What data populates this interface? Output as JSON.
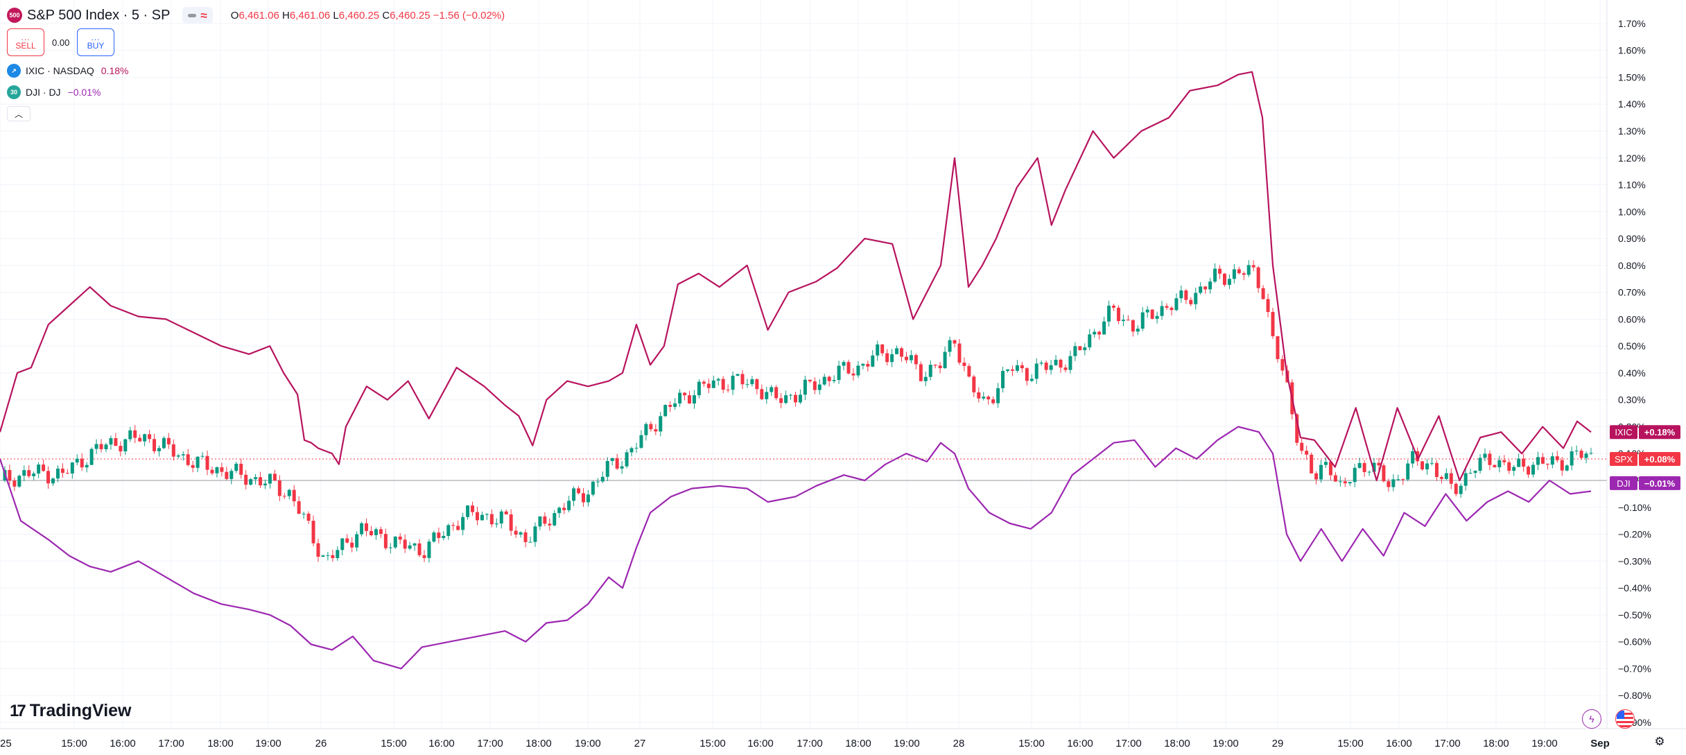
{
  "header": {
    "symbol_logo": "500",
    "title": "S&P 500 Index · 5 · SP",
    "ohlc": {
      "o_label": "O",
      "o": "6,461.06",
      "h_label": "H",
      "h": "6,461.06",
      "l_label": "L",
      "l": "6,460.25",
      "c_label": "C",
      "c": "6,460.25",
      "change": "−1.56 (−0.02%)"
    }
  },
  "trade": {
    "sell_dots": "...",
    "sell_label": "SELL",
    "spread": "0.00",
    "buy_dots": "...",
    "buy_label": "BUY"
  },
  "legend": [
    {
      "symbol": "IXIC · NASDAQ",
      "value": "0.18%",
      "color": "#b7135e",
      "icon": "trend-up-icon"
    },
    {
      "symbol": "DJI · DJ",
      "value": "−0.01%",
      "color": "#9c27b0",
      "icon": "30"
    }
  ],
  "brand": "TradingView",
  "colors": {
    "ixic": "#b7135e",
    "dji": "#9c27b0",
    "up": "#089981",
    "down": "#f23645",
    "spx_badge": "#f23645"
  },
  "chart_data": {
    "type": "line",
    "y_axis": {
      "labels": [
        "1.70%",
        "1.60%",
        "1.50%",
        "1.40%",
        "1.30%",
        "1.20%",
        "1.10%",
        "1.00%",
        "0.90%",
        "0.80%",
        "0.70%",
        "0.60%",
        "0.50%",
        "0.40%",
        "0.30%",
        "0.20%",
        "0.10%",
        "0.00%",
        "−0.10%",
        "−0.20%",
        "−0.30%",
        "−0.40%",
        "−0.50%",
        "−0.60%",
        "−0.70%",
        "−0.80%",
        "−0.90%"
      ],
      "ylim": [
        -0.93,
        1.72
      ],
      "unit": "%"
    },
    "x_axis": {
      "labels": [
        "25",
        "15:00",
        "16:00",
        "17:00",
        "18:00",
        "19:00",
        "26",
        "15:00",
        "16:00",
        "17:00",
        "18:00",
        "19:00",
        "27",
        "15:00",
        "16:00",
        "17:00",
        "18:00",
        "19:00",
        "28",
        "15:00",
        "16:00",
        "17:00",
        "18:00",
        "19:00",
        "29",
        "15:00",
        "16:00",
        "17:00",
        "18:00",
        "19:00",
        "Sep"
      ],
      "bold": [
        "Sep"
      ]
    },
    "badges": [
      {
        "name": "IXIC",
        "value": "+0.18%",
        "color": "#b7135e",
        "y": 0.18
      },
      {
        "name": "SPX",
        "value": "+0.08%",
        "color": "#f23645",
        "y": 0.08
      },
      {
        "name": "DJI",
        "value": "−0.01%",
        "color": "#9c27b0",
        "y": -0.01
      }
    ],
    "series": [
      {
        "name": "IXIC",
        "color": "#b7135e",
        "points": [
          [
            0.0,
            0.18
          ],
          [
            0.25,
            0.4
          ],
          [
            0.45,
            0.42
          ],
          [
            0.7,
            0.58
          ],
          [
            1.0,
            0.65
          ],
          [
            1.3,
            0.72
          ],
          [
            1.6,
            0.65
          ],
          [
            2.0,
            0.61
          ],
          [
            2.4,
            0.6
          ],
          [
            2.8,
            0.55
          ],
          [
            3.2,
            0.5
          ],
          [
            3.6,
            0.47
          ],
          [
            3.9,
            0.5
          ],
          [
            4.1,
            0.4
          ],
          [
            4.3,
            0.32
          ],
          [
            4.4,
            0.15
          ],
          [
            4.5,
            0.14
          ],
          [
            4.6,
            0.12
          ],
          [
            4.8,
            0.1
          ],
          [
            4.9,
            0.06
          ],
          [
            5.0,
            0.2
          ],
          [
            5.3,
            0.35
          ],
          [
            5.6,
            0.3
          ],
          [
            5.9,
            0.37
          ],
          [
            6.2,
            0.23
          ],
          [
            6.6,
            0.42
          ],
          [
            7.0,
            0.35
          ],
          [
            7.3,
            0.28
          ],
          [
            7.5,
            0.24
          ],
          [
            7.7,
            0.13
          ],
          [
            7.9,
            0.3
          ],
          [
            8.2,
            0.37
          ],
          [
            8.5,
            0.35
          ],
          [
            8.8,
            0.37
          ],
          [
            9.0,
            0.4
          ],
          [
            9.2,
            0.58
          ],
          [
            9.4,
            0.43
          ],
          [
            9.6,
            0.5
          ],
          [
            9.8,
            0.73
          ],
          [
            10.1,
            0.77
          ],
          [
            10.4,
            0.72
          ],
          [
            10.8,
            0.8
          ],
          [
            11.1,
            0.56
          ],
          [
            11.4,
            0.7
          ],
          [
            11.8,
            0.74
          ],
          [
            12.1,
            0.79
          ],
          [
            12.5,
            0.9
          ],
          [
            12.9,
            0.88
          ],
          [
            13.2,
            0.6
          ],
          [
            13.6,
            0.8
          ],
          [
            13.8,
            1.2
          ],
          [
            14.0,
            0.72
          ],
          [
            14.2,
            0.8
          ],
          [
            14.4,
            0.9
          ],
          [
            14.7,
            1.09
          ],
          [
            15.0,
            1.2
          ],
          [
            15.2,
            0.95
          ],
          [
            15.4,
            1.08
          ],
          [
            15.8,
            1.3
          ],
          [
            16.1,
            1.2
          ],
          [
            16.5,
            1.3
          ],
          [
            16.9,
            1.35
          ],
          [
            17.2,
            1.45
          ],
          [
            17.6,
            1.47
          ],
          [
            17.9,
            1.51
          ],
          [
            18.1,
            1.52
          ],
          [
            18.25,
            1.35
          ],
          [
            18.4,
            0.8
          ],
          [
            18.6,
            0.4
          ],
          [
            18.8,
            0.16
          ],
          [
            19.0,
            0.15
          ],
          [
            19.3,
            0.05
          ],
          [
            19.6,
            0.27
          ],
          [
            19.9,
            0.0
          ],
          [
            20.2,
            0.27
          ],
          [
            20.5,
            0.08
          ],
          [
            20.8,
            0.24
          ],
          [
            21.1,
            0.0
          ],
          [
            21.4,
            0.16
          ],
          [
            21.7,
            0.18
          ],
          [
            22.0,
            0.1
          ],
          [
            22.3,
            0.2
          ],
          [
            22.6,
            0.12
          ],
          [
            22.8,
            0.22
          ],
          [
            23.0,
            0.18
          ]
        ]
      },
      {
        "name": "DJI",
        "color": "#9c27b0",
        "points": [
          [
            0.0,
            0.08
          ],
          [
            0.3,
            -0.15
          ],
          [
            0.7,
            -0.22
          ],
          [
            1.0,
            -0.28
          ],
          [
            1.3,
            -0.32
          ],
          [
            1.6,
            -0.34
          ],
          [
            2.0,
            -0.3
          ],
          [
            2.4,
            -0.36
          ],
          [
            2.8,
            -0.42
          ],
          [
            3.2,
            -0.46
          ],
          [
            3.6,
            -0.48
          ],
          [
            3.9,
            -0.5
          ],
          [
            4.2,
            -0.54
          ],
          [
            4.5,
            -0.61
          ],
          [
            4.8,
            -0.63
          ],
          [
            5.1,
            -0.58
          ],
          [
            5.4,
            -0.67
          ],
          [
            5.8,
            -0.7
          ],
          [
            6.1,
            -0.62
          ],
          [
            6.5,
            -0.6
          ],
          [
            6.9,
            -0.58
          ],
          [
            7.3,
            -0.56
          ],
          [
            7.6,
            -0.6
          ],
          [
            7.9,
            -0.53
          ],
          [
            8.2,
            -0.52
          ],
          [
            8.5,
            -0.46
          ],
          [
            8.8,
            -0.36
          ],
          [
            9.0,
            -0.4
          ],
          [
            9.2,
            -0.25
          ],
          [
            9.4,
            -0.12
          ],
          [
            9.7,
            -0.06
          ],
          [
            10.0,
            -0.03
          ],
          [
            10.4,
            -0.02
          ],
          [
            10.8,
            -0.03
          ],
          [
            11.1,
            -0.08
          ],
          [
            11.5,
            -0.06
          ],
          [
            11.8,
            -0.02
          ],
          [
            12.2,
            0.02
          ],
          [
            12.5,
            0.0
          ],
          [
            12.8,
            0.06
          ],
          [
            13.1,
            0.1
          ],
          [
            13.4,
            0.07
          ],
          [
            13.6,
            0.14
          ],
          [
            13.8,
            0.1
          ],
          [
            14.0,
            -0.03
          ],
          [
            14.3,
            -0.12
          ],
          [
            14.6,
            -0.16
          ],
          [
            14.9,
            -0.18
          ],
          [
            15.2,
            -0.12
          ],
          [
            15.5,
            0.02
          ],
          [
            15.8,
            0.08
          ],
          [
            16.1,
            0.14
          ],
          [
            16.4,
            0.15
          ],
          [
            16.7,
            0.05
          ],
          [
            17.0,
            0.12
          ],
          [
            17.3,
            0.08
          ],
          [
            17.6,
            0.15
          ],
          [
            17.9,
            0.2
          ],
          [
            18.2,
            0.18
          ],
          [
            18.4,
            0.1
          ],
          [
            18.6,
            -0.2
          ],
          [
            18.8,
            -0.3
          ],
          [
            19.1,
            -0.18
          ],
          [
            19.4,
            -0.3
          ],
          [
            19.7,
            -0.18
          ],
          [
            20.0,
            -0.28
          ],
          [
            20.3,
            -0.12
          ],
          [
            20.6,
            -0.17
          ],
          [
            20.9,
            -0.05
          ],
          [
            21.2,
            -0.15
          ],
          [
            21.5,
            -0.08
          ],
          [
            21.8,
            -0.04
          ],
          [
            22.1,
            -0.08
          ],
          [
            22.4,
            0.0
          ],
          [
            22.7,
            -0.05
          ],
          [
            23.0,
            -0.04
          ]
        ]
      },
      {
        "name": "SPX",
        "type": "candlestick",
        "color_up": "#089981",
        "color_down": "#f23645",
        "points": [
          [
            0.0,
            0.0
          ],
          [
            0.3,
            0.02
          ],
          [
            0.6,
            0.03
          ],
          [
            0.9,
            0.02
          ],
          [
            1.2,
            0.08
          ],
          [
            1.5,
            0.13
          ],
          [
            1.8,
            0.15
          ],
          [
            2.1,
            0.16
          ],
          [
            2.4,
            0.12
          ],
          [
            2.7,
            0.08
          ],
          [
            3.0,
            0.05
          ],
          [
            3.3,
            0.03
          ],
          [
            3.6,
            0.01
          ],
          [
            3.9,
            -0.01
          ],
          [
            4.2,
            -0.05
          ],
          [
            4.5,
            -0.2
          ],
          [
            4.7,
            -0.3
          ],
          [
            4.9,
            -0.26
          ],
          [
            5.2,
            -0.18
          ],
          [
            5.5,
            -0.21
          ],
          [
            5.8,
            -0.24
          ],
          [
            6.1,
            -0.26
          ],
          [
            6.4,
            -0.2
          ],
          [
            6.7,
            -0.13
          ],
          [
            7.0,
            -0.13
          ],
          [
            7.3,
            -0.15
          ],
          [
            7.6,
            -0.22
          ],
          [
            7.9,
            -0.15
          ],
          [
            8.2,
            -0.08
          ],
          [
            8.5,
            -0.04
          ],
          [
            8.8,
            0.05
          ],
          [
            9.1,
            0.1
          ],
          [
            9.4,
            0.2
          ],
          [
            9.7,
            0.28
          ],
          [
            10.0,
            0.33
          ],
          [
            10.3,
            0.36
          ],
          [
            10.6,
            0.37
          ],
          [
            10.9,
            0.36
          ],
          [
            11.2,
            0.3
          ],
          [
            11.5,
            0.32
          ],
          [
            11.8,
            0.36
          ],
          [
            12.1,
            0.4
          ],
          [
            12.4,
            0.42
          ],
          [
            12.7,
            0.47
          ],
          [
            13.0,
            0.48
          ],
          [
            13.3,
            0.4
          ],
          [
            13.6,
            0.43
          ],
          [
            13.8,
            0.53
          ],
          [
            14.0,
            0.37
          ],
          [
            14.2,
            0.28
          ],
          [
            14.4,
            0.34
          ],
          [
            14.6,
            0.42
          ],
          [
            14.9,
            0.4
          ],
          [
            15.2,
            0.43
          ],
          [
            15.5,
            0.45
          ],
          [
            15.8,
            0.55
          ],
          [
            16.1,
            0.63
          ],
          [
            16.4,
            0.57
          ],
          [
            16.7,
            0.63
          ],
          [
            17.0,
            0.66
          ],
          [
            17.3,
            0.7
          ],
          [
            17.6,
            0.76
          ],
          [
            17.9,
            0.77
          ],
          [
            18.1,
            0.78
          ],
          [
            18.25,
            0.72
          ],
          [
            18.4,
            0.52
          ],
          [
            18.6,
            0.35
          ],
          [
            18.8,
            0.12
          ],
          [
            19.0,
            0.0
          ],
          [
            19.2,
            0.08
          ],
          [
            19.4,
            -0.05
          ],
          [
            19.6,
            0.05
          ],
          [
            19.8,
            0.06
          ],
          [
            20.1,
            -0.02
          ],
          [
            20.4,
            0.07
          ],
          [
            20.7,
            0.06
          ],
          [
            21.0,
            -0.04
          ],
          [
            21.3,
            0.05
          ],
          [
            21.6,
            0.08
          ],
          [
            21.9,
            0.04
          ],
          [
            22.2,
            0.07
          ],
          [
            22.5,
            0.06
          ],
          [
            22.8,
            0.1
          ],
          [
            23.0,
            0.08
          ]
        ]
      }
    ],
    "grid": true
  }
}
